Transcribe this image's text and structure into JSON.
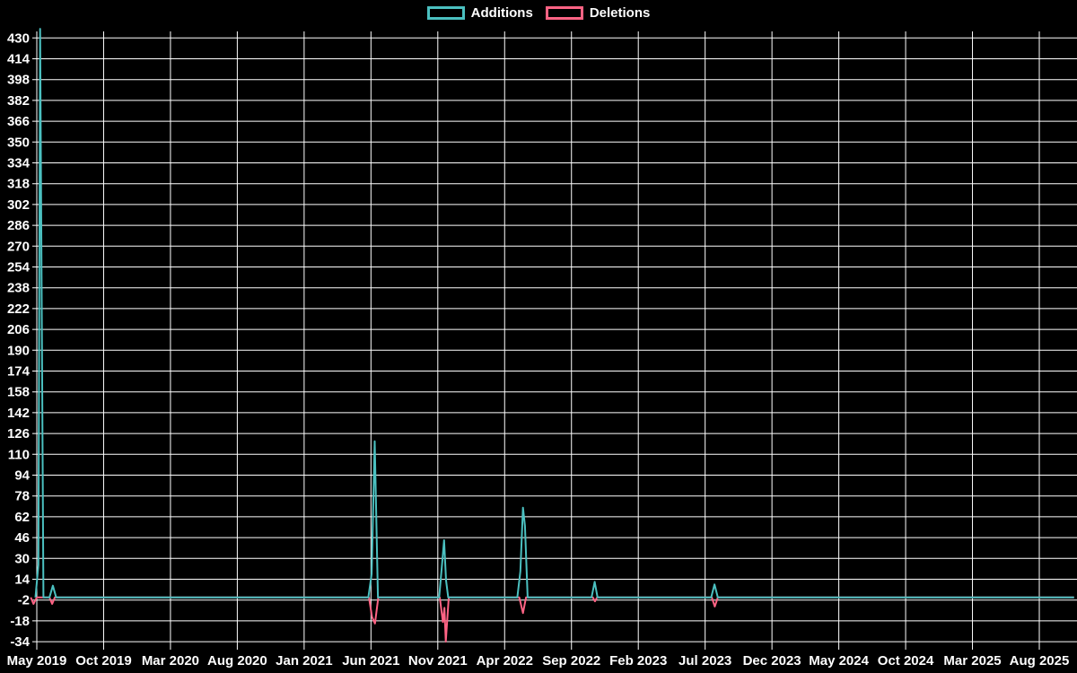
{
  "legend": {
    "items": [
      {
        "label": "Additions",
        "color": "#4bc0c0"
      },
      {
        "label": "Deletions",
        "color": "#ff6384"
      }
    ]
  },
  "chart_data": {
    "type": "line",
    "title": "",
    "xlabel": "",
    "ylabel": "",
    "legend_position": "top-center",
    "background_color": "#000000",
    "grid": true,
    "grid_color": "#ffffff",
    "tick_label_color": "#ffffff",
    "x_ticks": [
      "May 2019",
      "Oct 2019",
      "Mar 2020",
      "Aug 2020",
      "Jan 2021",
      "Jun 2021",
      "Nov 2021",
      "Apr 2022",
      "Sep 2022",
      "Feb 2023",
      "Jul 2023",
      "Dec 2023",
      "May 2024",
      "Oct 2024",
      "Mar 2025",
      "Aug 2025"
    ],
    "x_tick_interval_months": 5,
    "y_ticks": [
      430,
      414,
      398,
      382,
      366,
      350,
      334,
      318,
      302,
      286,
      270,
      254,
      238,
      222,
      206,
      190,
      174,
      158,
      142,
      126,
      110,
      94,
      78,
      62,
      46,
      30,
      14,
      -2,
      -18,
      -34
    ],
    "ylim": [
      -41,
      435
    ],
    "x_unit": "months after May 2019",
    "series": [
      {
        "name": "Additions",
        "color": "#4bc0c0",
        "points": [
          [
            -0.1,
            0
          ],
          [
            0.12,
            25
          ],
          [
            0.25,
            437
          ],
          [
            0.5,
            0
          ],
          [
            0.95,
            0
          ],
          [
            1.2,
            9
          ],
          [
            1.45,
            0
          ],
          [
            24.8,
            0
          ],
          [
            25.05,
            18
          ],
          [
            25.28,
            120
          ],
          [
            25.52,
            0
          ],
          [
            30.1,
            0
          ],
          [
            30.32,
            26
          ],
          [
            30.47,
            44
          ],
          [
            30.62,
            13
          ],
          [
            30.78,
            0
          ],
          [
            35.95,
            0
          ],
          [
            36.18,
            20
          ],
          [
            36.37,
            69
          ],
          [
            36.52,
            55
          ],
          [
            36.72,
            0
          ],
          [
            41.5,
            0
          ],
          [
            41.74,
            12
          ],
          [
            41.95,
            0
          ],
          [
            50.45,
            0
          ],
          [
            50.7,
            10
          ],
          [
            50.95,
            0
          ],
          [
            77.6,
            0
          ]
        ],
        "notable_events": [
          {
            "approx_date": "May 2019",
            "value": 437
          },
          {
            "approx_date": "Jun 2019",
            "value": 9
          },
          {
            "approx_date": "Jun 2021",
            "value": 120
          },
          {
            "approx_date": "Nov 2021",
            "value": 44
          },
          {
            "approx_date": "May 2022",
            "value": 69
          },
          {
            "approx_date": "Oct 2022",
            "value": 12
          },
          {
            "approx_date": "Aug 2023",
            "value": 10
          }
        ]
      },
      {
        "name": "Deletions",
        "color": "#ff6384",
        "points": [
          [
            -0.45,
            0
          ],
          [
            -0.25,
            -5
          ],
          [
            0.0,
            0
          ],
          [
            0.95,
            0
          ],
          [
            1.15,
            -5
          ],
          [
            1.35,
            0
          ],
          [
            24.85,
            0
          ],
          [
            25.08,
            -15
          ],
          [
            25.3,
            -20
          ],
          [
            25.55,
            0
          ],
          [
            30.15,
            0
          ],
          [
            30.38,
            -19
          ],
          [
            30.5,
            -8
          ],
          [
            30.6,
            -34
          ],
          [
            30.82,
            0
          ],
          [
            36.1,
            0
          ],
          [
            36.37,
            -12
          ],
          [
            36.6,
            0
          ],
          [
            41.6,
            0
          ],
          [
            41.76,
            -3
          ],
          [
            41.92,
            0
          ],
          [
            50.5,
            0
          ],
          [
            50.72,
            -7
          ],
          [
            50.95,
            0
          ],
          [
            77.6,
            0
          ]
        ],
        "notable_events": [
          {
            "approx_date": "May 2019",
            "value": -5
          },
          {
            "approx_date": "Jun 2019",
            "value": -5
          },
          {
            "approx_date": "Jun 2021",
            "value": -20
          },
          {
            "approx_date": "Nov 2021",
            "value": -34
          },
          {
            "approx_date": "May 2022",
            "value": -12
          },
          {
            "approx_date": "Oct 2022",
            "value": -3
          },
          {
            "approx_date": "Aug 2023",
            "value": -7
          }
        ]
      }
    ]
  }
}
